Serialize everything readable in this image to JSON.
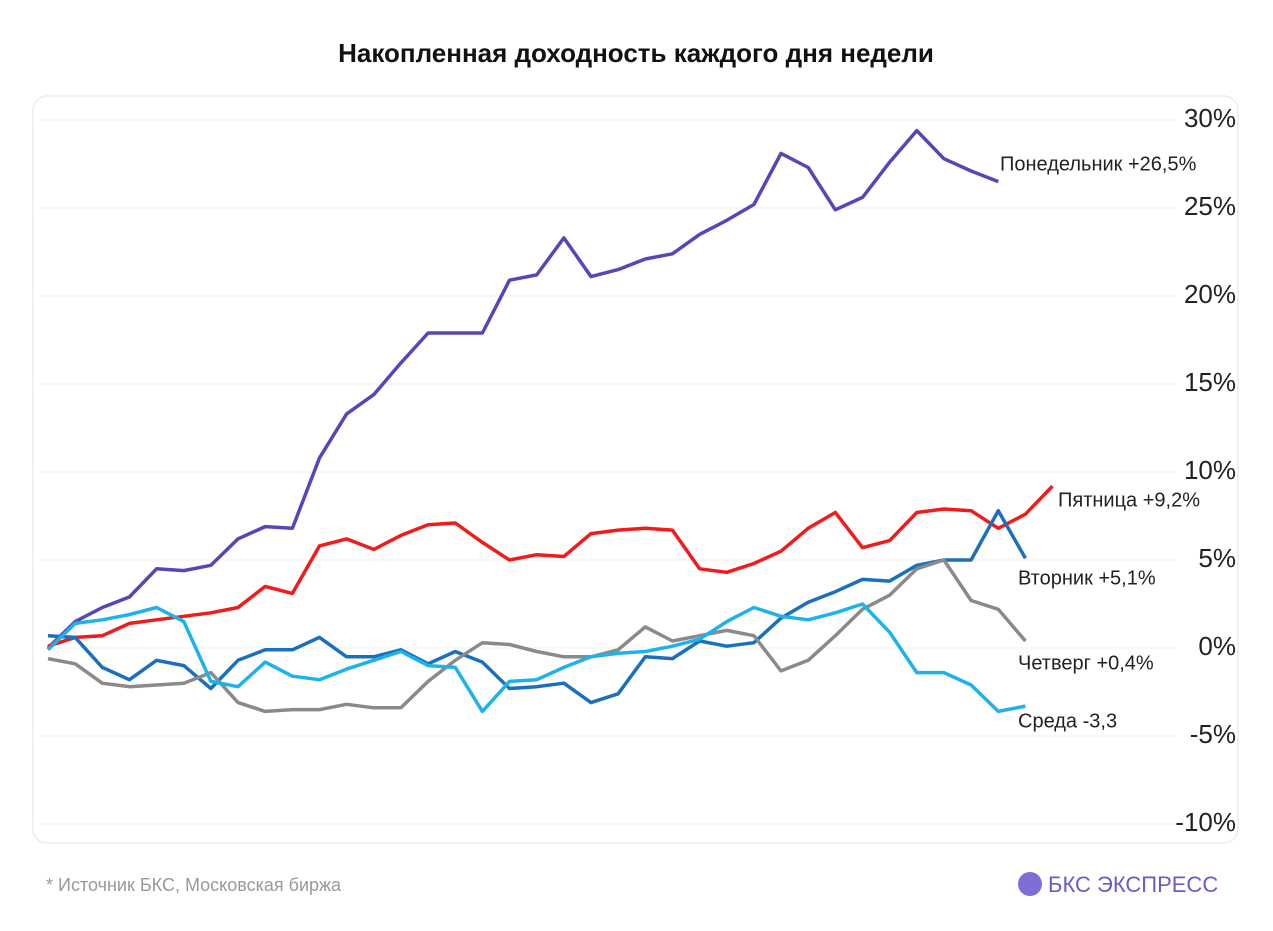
{
  "chart_data": {
    "type": "line",
    "title": "Накопленная доходность каждого дня недели",
    "categories": [
      null,
      null,
      null,
      null,
      null,
      null,
      null,
      null,
      null,
      null,
      null,
      null,
      null,
      null,
      null,
      null,
      null,
      null,
      null,
      null,
      null,
      null,
      null,
      null,
      null,
      null,
      null,
      null,
      null,
      null,
      null,
      null,
      null,
      null,
      null,
      null,
      null,
      null
    ],
    "series": [
      {
        "name": "Понедельник +26,5%",
        "color": "#5a45b8",
        "values": [
          0,
          1.5,
          2.3,
          2.9,
          4.5,
          4.4,
          4.7,
          6.2,
          6.9,
          6.8,
          10.8,
          13.3,
          14.4,
          16.2,
          17.9,
          17.9,
          17.9,
          20.9,
          21.2,
          23.3,
          21.1,
          21.5,
          22.1,
          22.4,
          23.5,
          24.3,
          25.2,
          28.1,
          27.3,
          24.9,
          25.6,
          27.6,
          29.4,
          27.8,
          27.1,
          26.5,
          null,
          null
        ]
      },
      {
        "name": "Пятница +9,2%",
        "color": "#f01c1c",
        "values": [
          0.1,
          0.6,
          0.7,
          1.4,
          1.6,
          1.8,
          2.0,
          2.3,
          3.5,
          3.1,
          5.8,
          6.2,
          5.6,
          6.4,
          7.0,
          7.1,
          6.0,
          5.0,
          5.3,
          5.2,
          6.5,
          6.7,
          6.8,
          6.7,
          4.5,
          4.3,
          4.8,
          5.5,
          6.8,
          7.7,
          5.7,
          6.1,
          7.7,
          7.9,
          7.8,
          6.8,
          7.6,
          9.2
        ]
      },
      {
        "name": "Вторник +5,1%",
        "color": "#1a70bd",
        "values": [
          0.7,
          0.6,
          -1.1,
          -1.8,
          -0.7,
          -1.0,
          -2.3,
          -0.7,
          -0.1,
          -0.1,
          0.6,
          -0.5,
          -0.5,
          -0.1,
          -0.9,
          -0.2,
          -0.8,
          -2.3,
          -2.2,
          -2.0,
          -3.1,
          -2.6,
          -0.5,
          -0.6,
          0.4,
          0.1,
          0.3,
          1.7,
          2.6,
          3.2,
          3.9,
          3.8,
          4.7,
          5.0,
          5.0,
          7.8,
          5.1,
          null
        ]
      },
      {
        "name": "Четверг +0,4%",
        "color": "#8a8a8a",
        "values": [
          -0.6,
          -0.9,
          -2.0,
          -2.2,
          -2.1,
          -2.0,
          -1.4,
          -3.1,
          -3.6,
          -3.5,
          -3.5,
          -3.2,
          -3.4,
          -3.4,
          -1.9,
          -0.7,
          0.3,
          0.2,
          -0.2,
          -0.5,
          -0.5,
          -0.1,
          1.2,
          0.4,
          0.7,
          1.0,
          0.7,
          -1.3,
          -0.7,
          0.7,
          2.2,
          3.0,
          4.5,
          5.0,
          2.7,
          2.2,
          0.4,
          null
        ]
      },
      {
        "name": "Среда -3,3",
        "color": "#1eb2ea",
        "values": [
          -0.1,
          1.4,
          1.6,
          1.9,
          2.3,
          1.5,
          -1.9,
          -2.2,
          -0.8,
          -1.6,
          -1.8,
          -1.2,
          -0.7,
          -0.2,
          -1.0,
          -1.1,
          -3.6,
          -1.9,
          -1.8,
          -1.1,
          -0.5,
          -0.3,
          -0.2,
          0.1,
          0.5,
          1.5,
          2.3,
          1.8,
          1.6,
          2.0,
          2.5,
          0.9,
          -1.4,
          -1.4,
          -2.1,
          -3.6,
          -3.3,
          null
        ]
      }
    ],
    "ylim": [
      -10,
      30
    ],
    "yticks": [
      {
        "value": 30,
        "label": "30%"
      },
      {
        "value": 25,
        "label": "25%"
      },
      {
        "value": 20,
        "label": "20%"
      },
      {
        "value": 15,
        "label": "15%"
      },
      {
        "value": 10,
        "label": "10%"
      },
      {
        "value": 5,
        "label": "5%"
      },
      {
        "value": 0,
        "label": "0%"
      },
      {
        "value": -5,
        "label": "-5%"
      },
      {
        "value": -10,
        "label": "-10%"
      }
    ],
    "grid": true,
    "source": "*  Источник БКС, Московская биржа",
    "logo": "БКС ЭКСПРЕСС"
  }
}
